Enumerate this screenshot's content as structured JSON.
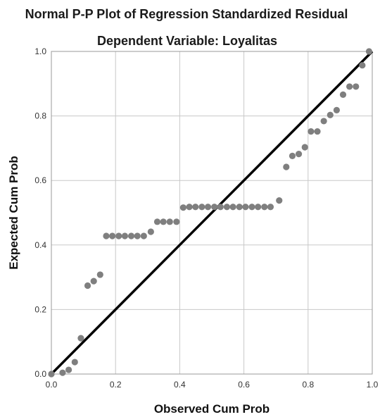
{
  "chart_data": {
    "type": "scatter",
    "title": "Normal P-P Plot of Regression Standardized Residual",
    "subtitle": "Dependent Variable: Loyalitas",
    "xlabel": "Observed Cum Prob",
    "ylabel": "Expected Cum Prob",
    "xlim": [
      0.0,
      1.0
    ],
    "ylim": [
      0.0,
      1.0
    ],
    "xticks": [
      "0.0",
      "0.2",
      "0.4",
      "0.6",
      "0.8",
      "1.0"
    ],
    "yticks": [
      "0.0",
      "0.2",
      "0.4",
      "0.6",
      "0.8",
      "1.0"
    ],
    "grid": true,
    "reference_line": {
      "x": [
        0,
        1
      ],
      "y": [
        0,
        1
      ]
    },
    "colors": {
      "points": "#7f7f7f",
      "line": "#000000",
      "grid": "#c8c8c8",
      "frame": "#9a9a9a"
    },
    "points": [
      [
        0.0,
        0.0
      ],
      [
        0.035,
        0.004
      ],
      [
        0.054,
        0.013
      ],
      [
        0.073,
        0.037
      ],
      [
        0.092,
        0.111
      ],
      [
        0.113,
        0.274
      ],
      [
        0.132,
        0.288
      ],
      [
        0.152,
        0.308
      ],
      [
        0.171,
        0.428
      ],
      [
        0.19,
        0.428
      ],
      [
        0.21,
        0.428
      ],
      [
        0.229,
        0.428
      ],
      [
        0.249,
        0.428
      ],
      [
        0.268,
        0.428
      ],
      [
        0.288,
        0.428
      ],
      [
        0.31,
        0.441
      ],
      [
        0.33,
        0.472
      ],
      [
        0.349,
        0.472
      ],
      [
        0.369,
        0.472
      ],
      [
        0.39,
        0.472
      ],
      [
        0.411,
        0.516
      ],
      [
        0.43,
        0.518
      ],
      [
        0.449,
        0.518
      ],
      [
        0.469,
        0.518
      ],
      [
        0.488,
        0.518
      ],
      [
        0.508,
        0.518
      ],
      [
        0.527,
        0.518
      ],
      [
        0.547,
        0.518
      ],
      [
        0.566,
        0.518
      ],
      [
        0.586,
        0.518
      ],
      [
        0.605,
        0.518
      ],
      [
        0.625,
        0.518
      ],
      [
        0.644,
        0.518
      ],
      [
        0.664,
        0.518
      ],
      [
        0.683,
        0.518
      ],
      [
        0.71,
        0.538
      ],
      [
        0.732,
        0.642
      ],
      [
        0.751,
        0.676
      ],
      [
        0.771,
        0.682
      ],
      [
        0.79,
        0.703
      ],
      [
        0.809,
        0.752
      ],
      [
        0.829,
        0.752
      ],
      [
        0.849,
        0.784
      ],
      [
        0.869,
        0.803
      ],
      [
        0.889,
        0.818
      ],
      [
        0.909,
        0.866
      ],
      [
        0.929,
        0.891
      ],
      [
        0.949,
        0.891
      ],
      [
        0.969,
        0.957
      ],
      [
        0.99,
        1.0
      ]
    ]
  }
}
